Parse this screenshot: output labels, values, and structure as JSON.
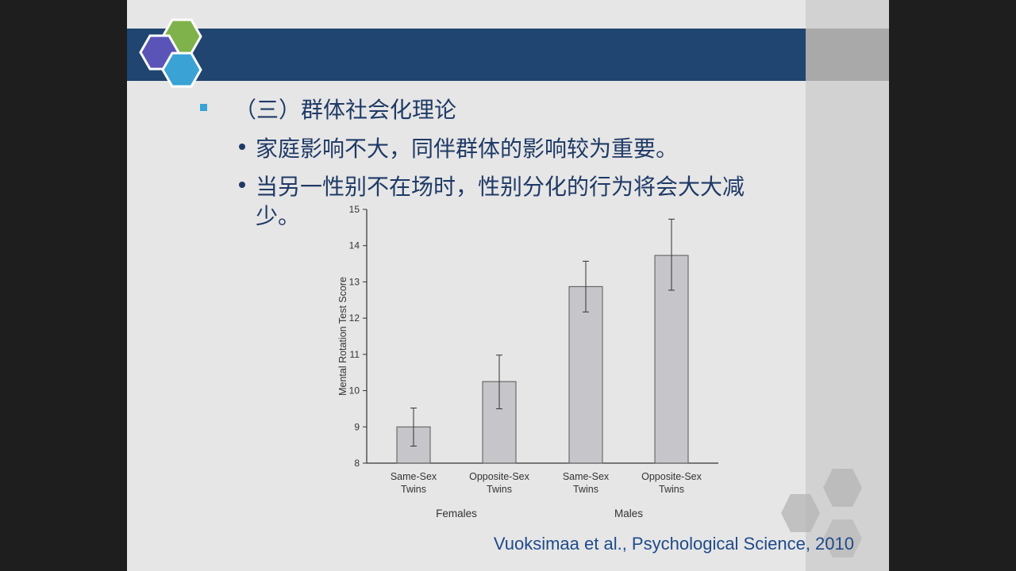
{
  "heading": "（三）群体社会化理论",
  "bullets": [
    "家庭影响不大，同伴群体的影响较为重要。",
    "当另一性别不在场时，性别分化的行为将会大大减",
    "少。"
  ],
  "citation": "Vuoksimaa et al., Psychological Science, 2010",
  "colors": {
    "header_bar": "#1f4570",
    "text": "#1f3a66",
    "bullet_square": "#3aa2d4",
    "bar_fill": "#c6c6ca",
    "logo_green": "#7fb24a",
    "logo_purple": "#5b54b8",
    "logo_blue": "#3aa2d4"
  },
  "chart_data": {
    "type": "bar",
    "title": "",
    "ylabel": "Mental Rotation Test Score",
    "ylim": [
      8,
      15
    ],
    "yticks": [
      "8",
      "9",
      "10",
      "11",
      "12",
      "13",
      "14",
      "15"
    ],
    "categories": [
      [
        "Same-Sex",
        "Twins"
      ],
      [
        "Opposite-Sex",
        "Twins"
      ],
      [
        "Same-Sex",
        "Twins"
      ],
      [
        "Opposite-Sex",
        "Twins"
      ]
    ],
    "groups": [
      "Females",
      "Males"
    ],
    "values": [
      9.0,
      10.25,
      12.87,
      13.73
    ],
    "error_low": [
      8.47,
      9.5,
      12.17,
      12.77
    ],
    "error_high": [
      9.52,
      10.98,
      13.57,
      14.73
    ]
  }
}
